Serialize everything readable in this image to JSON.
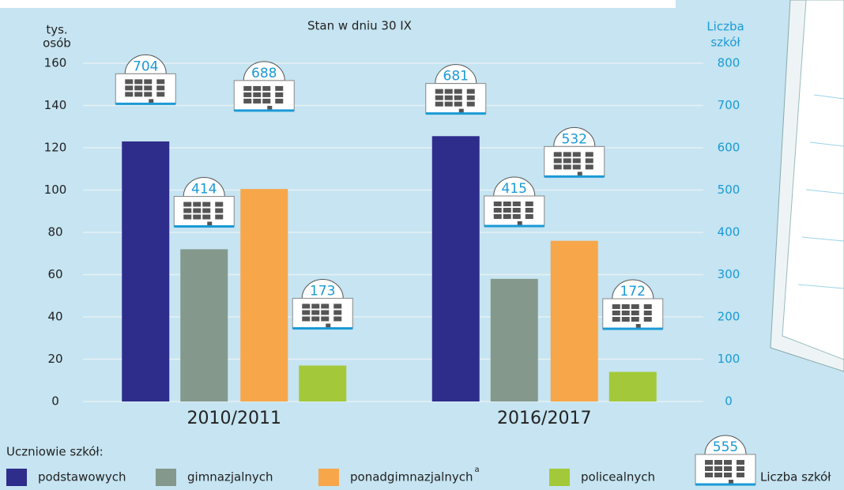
{
  "chart_data": {
    "type": "bar",
    "subtitle": "Stan w dniu 30 IX",
    "ylabel_lines": [
      "tys.",
      "osób"
    ],
    "y2label_lines": [
      "Liczba",
      "szkół"
    ],
    "categories": [
      "2010/2011",
      "2016/2017"
    ],
    "legend_title": "Uczniowie szkół:",
    "series": [
      {
        "name": "podstawowych",
        "color": "#2e2d8c",
        "values": [
          123,
          125.5
        ],
        "school_counts": [
          704,
          681
        ]
      },
      {
        "name": "gimnazjalnych",
        "color": "#84998b",
        "values": [
          72,
          58
        ],
        "school_counts": [
          414,
          415
        ]
      },
      {
        "name": "ponadgimnazjalnych",
        "footnote_mark": "a",
        "color": "#f7a64a",
        "values": [
          100.5,
          76
        ],
        "school_counts": [
          688,
          532
        ]
      },
      {
        "name": "policealnych",
        "color": "#a3c93a",
        "values": [
          17,
          14
        ],
        "school_counts": [
          173,
          172
        ]
      }
    ],
    "school_legend": {
      "label": "Liczba szkół",
      "value": 555
    },
    "ylim": [
      0,
      160
    ],
    "yticks": [
      0,
      20,
      40,
      60,
      80,
      100,
      120,
      140,
      160
    ],
    "y2lim": [
      0,
      800
    ],
    "y2ticks": [
      0,
      100,
      200,
      300,
      400,
      500,
      600,
      700,
      800
    ],
    "grid": true
  }
}
